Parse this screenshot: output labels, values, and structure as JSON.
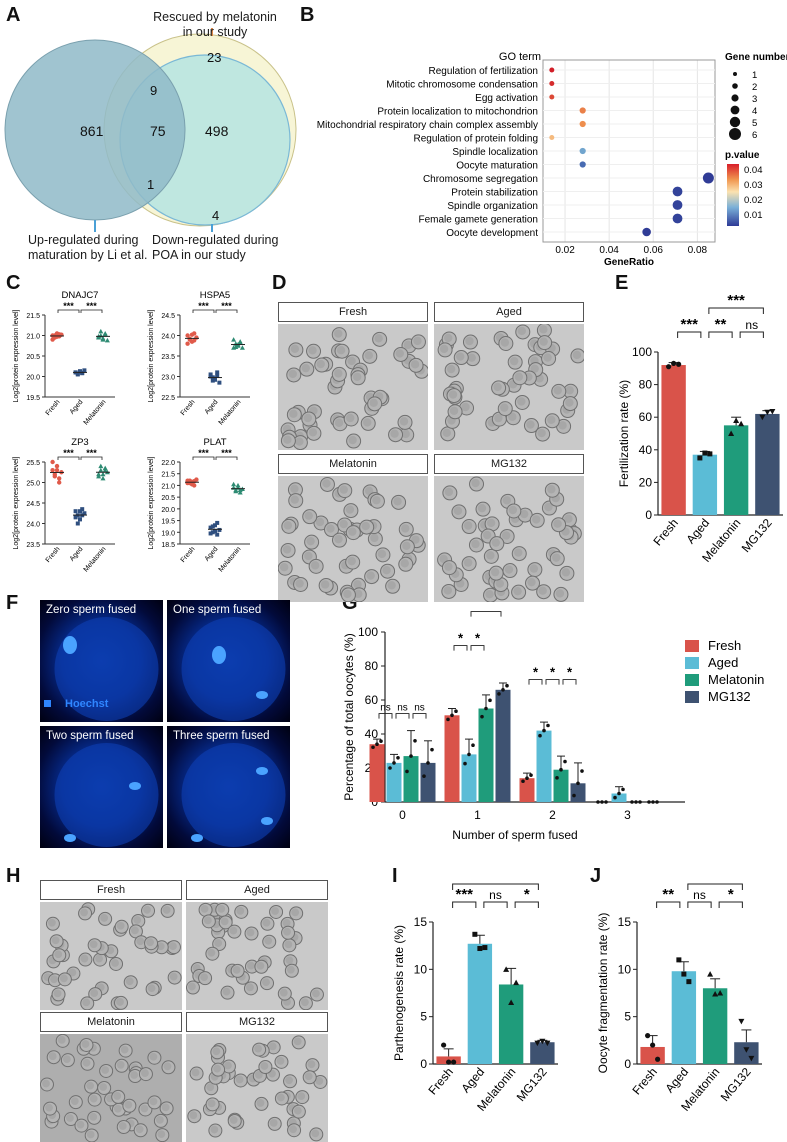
{
  "panels": {
    "A": {
      "label": "A",
      "texts": {
        "top": "Rescued by melatonin\nin our study",
        "left_bottom": "Up-regulated during\nmaturation by Li et al.",
        "right_bottom": "Down-regulated during\nPOA in our study"
      },
      "counts": {
        "left_only": "861",
        "center": "75",
        "right_only": "498",
        "top_only": "23",
        "left_top": "9",
        "left_right": "1",
        "right_extra": "4"
      }
    },
    "B": {
      "label": "B",
      "chart_data": {
        "type": "scatter",
        "title": "GO term",
        "xlabel": "GeneRatio",
        "xticks": [
          "0.02",
          "0.04",
          "0.06",
          "0.08"
        ],
        "xlim": [
          0.01,
          0.088
        ],
        "terms": [
          "Regulation of fertilization",
          "Mitotic chromosome condensation",
          "Egg activation",
          "Protein localization to mitochondrion",
          "Mitochondrial respiratory chain complex assembly",
          "Regulation of protein folding",
          "Spindle localization",
          "Oocyte maturation",
          "Chromosome segregation",
          "Protein stabilization",
          "Spindle organization",
          "Female gamete generation",
          "Oocyte development"
        ],
        "x": [
          0.014,
          0.014,
          0.014,
          0.028,
          0.028,
          0.014,
          0.028,
          0.028,
          0.085,
          0.071,
          0.071,
          0.071,
          0.057
        ],
        "gene_number": [
          1,
          1,
          1,
          2,
          2,
          1,
          2,
          2,
          6,
          5,
          5,
          5,
          4
        ],
        "pvalue": [
          0.045,
          0.044,
          0.042,
          0.038,
          0.037,
          0.032,
          0.018,
          0.009,
          0.002,
          0.003,
          0.003,
          0.003,
          0.002
        ],
        "legend_size_title": "Gene number",
        "legend_sizes": [
          "1",
          "2",
          "3",
          "4",
          "5",
          "6"
        ],
        "legend_color_title": "p.value",
        "legend_color_ticks": [
          "0.04",
          "0.03",
          "0.02",
          "0.01"
        ]
      }
    },
    "C": {
      "label": "C",
      "ylabel": "Log2[protein expression level]",
      "groups": [
        "Fresh",
        "Aged",
        "Melatonin"
      ],
      "sig": "***",
      "charts": [
        {
          "title": "DNAJC7",
          "ylim": [
            19.5,
            21.5
          ],
          "yticks": [
            "19.5",
            "20.0",
            "20.5",
            "21.0",
            "21.5"
          ],
          "fresh": [
            21.0,
            20.95,
            21.05,
            20.98,
            21.02,
            20.9,
            21.0,
            20.97,
            21.03
          ],
          "aged": [
            20.1,
            20.05,
            20.12,
            20.08,
            20.15,
            20.1,
            20.07,
            20.13,
            20.09
          ],
          "melatonin": [
            20.95,
            21.0,
            20.9,
            21.05,
            20.88,
            20.98,
            21.1,
            20.93,
            21.02
          ],
          "colors": [
            "#e05a4a",
            "#2f4f7f",
            "#2e8b73"
          ]
        },
        {
          "title": "HSPA5",
          "ylim": [
            22.5,
            24.5
          ],
          "yticks": [
            "22.5",
            "23.0",
            "23.5",
            "24.0",
            "24.5"
          ],
          "fresh": [
            24.0,
            23.9,
            23.85,
            24.05,
            23.95,
            23.8,
            23.92,
            24.02,
            23.88
          ],
          "aged": [
            23.0,
            22.9,
            22.95,
            23.1,
            22.85,
            23.05,
            22.98,
            22.92,
            23.02
          ],
          "melatonin": [
            23.7,
            23.8,
            23.75,
            23.85,
            23.7,
            23.9,
            23.72,
            23.78,
            23.82
          ],
          "colors": [
            "#e05a4a",
            "#2f4f7f",
            "#2e8b73"
          ]
        },
        {
          "title": "ZP3",
          "ylim": [
            23.5,
            25.5
          ],
          "yticks": [
            "23.5",
            "24.0",
            "24.5",
            "25.0",
            "25.5"
          ],
          "fresh": [
            25.3,
            25.2,
            25.4,
            25.1,
            25.25,
            25.5,
            25.15,
            25.3,
            25.0
          ],
          "aged": [
            24.3,
            24.2,
            24.1,
            24.35,
            24.25,
            24.15,
            24.0,
            24.3,
            24.2
          ],
          "melatonin": [
            25.2,
            25.3,
            25.1,
            25.35,
            25.25,
            25.15,
            25.4,
            25.2,
            25.3
          ],
          "colors": [
            "#e05a4a",
            "#2f4f7f",
            "#2e8b73"
          ]
        },
        {
          "title": "PLAT",
          "ylim": [
            18.5,
            22.0
          ],
          "yticks": [
            "18.5",
            "19.0",
            "19.5",
            "20.0",
            "20.5",
            "21.0",
            "21.5",
            "22.0"
          ],
          "fresh": [
            21.2,
            21.1,
            21.15,
            21.0,
            21.25,
            21.1,
            21.2,
            21.05,
            21.18
          ],
          "aged": [
            19.2,
            19.0,
            19.3,
            18.9,
            19.1,
            18.95,
            19.25,
            19.05,
            19.4
          ],
          "melatonin": [
            20.9,
            20.8,
            21.0,
            20.7,
            20.85,
            21.05,
            20.75,
            20.9,
            20.8
          ],
          "colors": [
            "#e05a4a",
            "#2f4f7f",
            "#2e8b73"
          ]
        }
      ]
    },
    "D": {
      "label": "D",
      "titles": [
        "Fresh",
        "Aged",
        "Melatonin",
        "MG132"
      ]
    },
    "E": {
      "label": "E",
      "chart_data": {
        "type": "bar",
        "categories": [
          "Fresh",
          "Aged",
          "Melatonin",
          "MG132"
        ],
        "values": [
          92,
          37,
          55,
          62
        ],
        "errors": [
          1.5,
          2,
          5,
          2
        ],
        "points": [
          [
            91,
            93,
            92.5
          ],
          [
            35,
            38,
            37.5
          ],
          [
            50,
            58,
            56
          ],
          [
            60,
            63,
            63.5
          ]
        ],
        "ylabel": "Fertilization rate (%)",
        "ylim": [
          0,
          100
        ],
        "yticks": [
          "0",
          "20",
          "40",
          "60",
          "80",
          "100"
        ],
        "colors": [
          "#d9534a",
          "#5bbcd6",
          "#1f9c7b",
          "#3e5271"
        ],
        "sig": [
          {
            "a": 0,
            "b": 1,
            "t": "***"
          },
          {
            "a": 1,
            "b": 2,
            "t": "**"
          },
          {
            "a": 2,
            "b": 3,
            "t": "ns"
          },
          {
            "a": 1,
            "b": 3,
            "t": "***"
          }
        ]
      }
    },
    "F": {
      "label": "F",
      "titles": [
        "Zero sperm fused",
        "One sperm fused",
        "Two sperm fused",
        "Three sperm fused"
      ],
      "legend": "Hoechst"
    },
    "G": {
      "label": "G",
      "chart_data": {
        "type": "bar",
        "categories": [
          "0",
          "1",
          "2",
          "3"
        ],
        "series": [
          {
            "name": "Fresh",
            "values": [
              34,
              51,
              14,
              0
            ],
            "errors": [
              3,
              4,
              3,
              0
            ]
          },
          {
            "name": "Aged",
            "values": [
              23,
              28,
              42,
              5
            ],
            "errors": [
              5,
              9,
              5,
              4
            ]
          },
          {
            "name": "Melatonin",
            "values": [
              27,
              55,
              19,
              0
            ],
            "errors": [
              15,
              8,
              8,
              0
            ]
          },
          {
            "name": "MG132",
            "values": [
              23,
              66,
              11,
              0
            ],
            "errors": [
              13,
              4,
              12,
              0
            ]
          }
        ],
        "ylabel": "Percentage of total oocytes (%)",
        "xlabel": "Number of sperm fused",
        "ylim": [
          0,
          100
        ],
        "yticks": [
          "0",
          "20",
          "40",
          "60",
          "80",
          "100"
        ],
        "colors": [
          "#d9534a",
          "#5bbcd6",
          "#1f9c7b",
          "#3e5271"
        ],
        "sig_labels": [
          "ns",
          "ns",
          "ns",
          "*",
          "*",
          "**",
          "*",
          "*",
          "*"
        ]
      }
    },
    "H": {
      "label": "H",
      "titles": [
        "Fresh",
        "Aged",
        "Melatonin",
        "MG132"
      ]
    },
    "I": {
      "label": "I",
      "chart_data": {
        "type": "bar",
        "categories": [
          "Fresh",
          "Aged",
          "Melatonin",
          "MG132"
        ],
        "values": [
          0.8,
          12.7,
          8.4,
          2.3
        ],
        "errors": [
          0.8,
          0.9,
          1.7,
          0.2
        ],
        "points": [
          [
            2,
            0.2,
            0.2
          ],
          [
            13.7,
            12.2,
            12.3
          ],
          [
            10,
            6.5,
            8.6
          ],
          [
            2.2,
            2.4,
            2.2
          ]
        ],
        "ylabel": "Parthenogenesis rate (%)",
        "ylim": [
          0,
          15
        ],
        "yticks": [
          "0",
          "5",
          "10",
          "15"
        ],
        "colors": [
          "#d9534a",
          "#5bbcd6",
          "#1f9c7b",
          "#3e5271"
        ],
        "sig": [
          {
            "a": 0,
            "b": 1,
            "t": "***"
          },
          {
            "a": 1,
            "b": 2,
            "t": "ns"
          },
          {
            "a": 2,
            "b": 3,
            "t": "*"
          },
          {
            "a": 0,
            "b": 3,
            "t": "***"
          }
        ]
      }
    },
    "J": {
      "label": "J",
      "chart_data": {
        "type": "bar",
        "categories": [
          "Fresh",
          "Aged",
          "Melatonin",
          "MG132"
        ],
        "values": [
          1.8,
          9.8,
          8.0,
          2.3
        ],
        "errors": [
          1.2,
          1.0,
          1.0,
          1.3
        ],
        "points": [
          [
            3,
            2,
            0.5
          ],
          [
            11,
            9.5,
            8.7
          ],
          [
            9.5,
            7.4,
            7.5
          ],
          [
            4.5,
            1.5,
            0.6
          ]
        ],
        "ylabel": "Oocyte fragmentation rate (%)",
        "ylim": [
          0,
          15
        ],
        "yticks": [
          "0",
          "5",
          "10",
          "15"
        ],
        "colors": [
          "#d9534a",
          "#5bbcd6",
          "#1f9c7b",
          "#3e5271"
        ],
        "sig": [
          {
            "a": 0,
            "b": 1,
            "t": "**"
          },
          {
            "a": 1,
            "b": 2,
            "t": "ns"
          },
          {
            "a": 2,
            "b": 3,
            "t": "*"
          },
          {
            "a": 1,
            "b": 3,
            "t": "**"
          }
        ]
      }
    }
  }
}
